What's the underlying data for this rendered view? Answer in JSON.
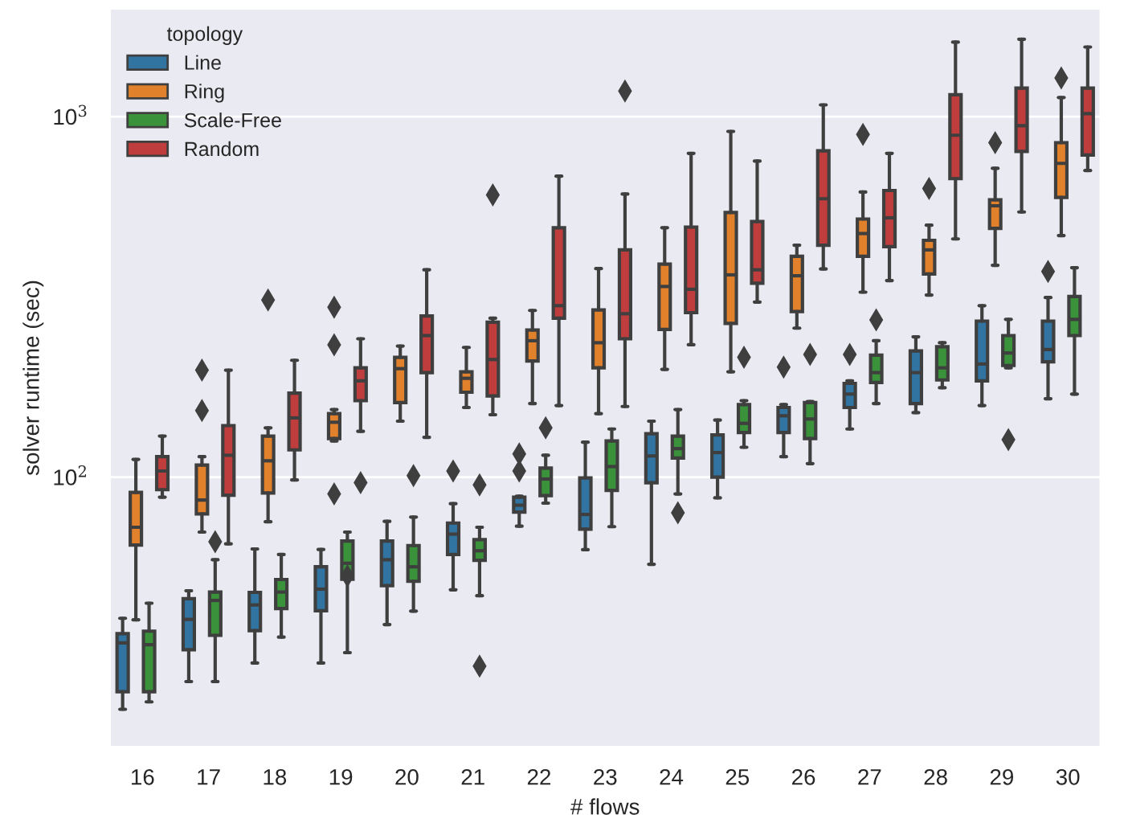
{
  "chart_data": {
    "type": "box",
    "xlabel": "# flows",
    "ylabel": "solver runtime (sec)",
    "legend_title": "topology",
    "legend": "top left",
    "grid": "y",
    "log": "y",
    "marker": "diamond",
    "ylim": [
      17.8,
      2000
    ],
    "yticks": [
      {
        "value": 100,
        "label": "10$^{2}$"
      },
      {
        "value": 1000,
        "label": "10$^{3}$"
      }
    ],
    "categories": [
      "16",
      "17",
      "18",
      "19",
      "20",
      "21",
      "22",
      "23",
      "24",
      "25",
      "26",
      "27",
      "28",
      "29",
      "30"
    ],
    "series": [
      {
        "name": "Line",
        "color": "#3274a1",
        "boxes": [
          {
            "low": 22.7,
            "q1": 25.4,
            "median": 34.7,
            "q3": 36.8,
            "high": 40.6
          },
          {
            "low": 27.1,
            "q1": 33.2,
            "median": 40.3,
            "q3": 46,
            "high": 48.4
          },
          {
            "low": 30.5,
            "q1": 37.5,
            "median": 44.2,
            "q3": 47.9,
            "high": 63.2
          },
          {
            "low": 30.5,
            "q1": 42.6,
            "median": 48.9,
            "q3": 56.4,
            "high": 63
          },
          {
            "low": 39,
            "q1": 50,
            "median": 59,
            "q3": 66.5,
            "high": 75.4
          },
          {
            "low": 48.7,
            "q1": 61,
            "median": 69.5,
            "q3": 74.6,
            "high": 84.4,
            "outliers": [
              104
            ]
          },
          {
            "low": 73.1,
            "q1": 80,
            "median": 83.6,
            "q3": 88,
            "high": 88.6,
            "outliers": [
              116,
              104
            ]
          },
          {
            "low": 62.9,
            "q1": 71.7,
            "median": 78.8,
            "q3": 99.5,
            "high": 125
          },
          {
            "low": 57.3,
            "q1": 96.5,
            "median": 114.5,
            "q3": 132,
            "high": 143
          },
          {
            "low": 87.6,
            "q1": 100,
            "median": 117,
            "q3": 131,
            "high": 144
          },
          {
            "low": 114,
            "q1": 133,
            "median": 148,
            "q3": 156,
            "high": 159,
            "outliers": [
              202
            ]
          },
          {
            "low": 136,
            "q1": 156,
            "median": 170,
            "q3": 182,
            "high": 185,
            "outliers": [
              219
            ]
          },
          {
            "low": 151,
            "q1": 160,
            "median": 195,
            "q3": 224,
            "high": 245
          },
          {
            "low": 158,
            "q1": 185,
            "median": 206,
            "q3": 271,
            "high": 299
          },
          {
            "low": 165,
            "q1": 209,
            "median": 226,
            "q3": 271,
            "high": 315,
            "outliers": [
              372
            ]
          }
        ]
      },
      {
        "name": "Ring",
        "color": "#e1812c",
        "boxes": [
          {
            "low": 40.2,
            "q1": 64.8,
            "median": 72.6,
            "q3": 90.7,
            "high": 112
          },
          {
            "low": 70.4,
            "q1": 79.1,
            "median": 86.4,
            "q3": 108,
            "high": 114,
            "outliers": [
              198,
              153
            ]
          },
          {
            "low": 75.2,
            "q1": 90.4,
            "median": 111,
            "q3": 130,
            "high": 137,
            "outliers": [
              310
            ]
          },
          {
            "low": 126,
            "q1": 128,
            "median": 142,
            "q3": 150,
            "high": 154,
            "outliers": [
              296,
              233,
              89.8
            ]
          },
          {
            "low": 143,
            "q1": 161,
            "median": 200,
            "q3": 215,
            "high": 231
          },
          {
            "low": 156,
            "q1": 172,
            "median": 188,
            "q3": 196,
            "high": 229
          },
          {
            "low": 160,
            "q1": 210,
            "median": 239,
            "q3": 256,
            "high": 290
          },
          {
            "low": 150,
            "q1": 201,
            "median": 236,
            "q3": 291,
            "high": 379
          },
          {
            "low": 199,
            "q1": 257,
            "median": 338,
            "q3": 390,
            "high": 492
          },
          {
            "low": 196,
            "q1": 267,
            "median": 364,
            "q3": 542,
            "high": 910
          },
          {
            "low": 259,
            "q1": 288,
            "median": 362,
            "q3": 410,
            "high": 440
          },
          {
            "low": 326,
            "q1": 410,
            "median": 474,
            "q3": 520,
            "high": 618,
            "outliers": [
              893
            ]
          },
          {
            "low": 320,
            "q1": 366,
            "median": 427,
            "q3": 454,
            "high": 500,
            "outliers": [
              632
            ]
          },
          {
            "low": 387,
            "q1": 490,
            "median": 566,
            "q3": 588,
            "high": 719,
            "outliers": [
              847
            ]
          },
          {
            "low": 468,
            "q1": 597,
            "median": 742,
            "q3": 847,
            "high": 1130,
            "outliers": [
              1280
            ]
          }
        ]
      },
      {
        "name": "Scale-Free",
        "color": "#3a923a",
        "boxes": [
          {
            "low": 23.8,
            "q1": 25.4,
            "median": 34.3,
            "q3": 37.4,
            "high": 44.7
          },
          {
            "low": 27.1,
            "q1": 36.4,
            "median": 45.5,
            "q3": 48,
            "high": 59,
            "outliers": [
              66.2
            ]
          },
          {
            "low": 36,
            "q1": 43.2,
            "median": 48,
            "q3": 52,
            "high": 61
          },
          {
            "low": 32.6,
            "q1": 52.1,
            "median": 57.7,
            "q3": 66.5,
            "high": 70.4,
            "outliers": [
              53.2
            ]
          },
          {
            "low": 42.5,
            "q1": 51.4,
            "median": 56.4,
            "q3": 64.6,
            "high": 77.5,
            "outliers": [
              101
            ]
          },
          {
            "low": 46.9,
            "q1": 58.8,
            "median": 62.5,
            "q3": 67.1,
            "high": 72.6,
            "outliers": [
              95.2,
              29.9
            ]
          },
          {
            "low": 84.7,
            "q1": 88.9,
            "median": 98.8,
            "q3": 106,
            "high": 115,
            "outliers": [
              137
            ]
          },
          {
            "low": 72.9,
            "q1": 91.9,
            "median": 107,
            "q3": 126,
            "high": 136
          },
          {
            "low": 89.8,
            "q1": 113,
            "median": 120,
            "q3": 130,
            "high": 154,
            "outliers": [
              79.6
            ]
          },
          {
            "low": 121,
            "q1": 133,
            "median": 141,
            "q3": 159,
            "high": 163,
            "outliers": [
              215
            ]
          },
          {
            "low": 109,
            "q1": 128,
            "median": 145,
            "q3": 161,
            "high": 162,
            "outliers": [
              219
            ]
          },
          {
            "low": 160,
            "q1": 183,
            "median": 195,
            "q3": 218,
            "high": 239,
            "outliers": [
              273
            ]
          },
          {
            "low": 177,
            "q1": 186,
            "median": 201,
            "q3": 230,
            "high": 236
          },
          {
            "low": 201,
            "q1": 204,
            "median": 221,
            "q3": 247,
            "high": 274,
            "outliers": [
              127
            ]
          },
          {
            "low": 170,
            "q1": 247,
            "median": 274,
            "q3": 317,
            "high": 381
          }
        ]
      },
      {
        "name": "Random",
        "color": "#c03d3e",
        "boxes": [
          {
            "low": 88,
            "q1": 92.3,
            "median": 104,
            "q3": 114,
            "high": 130
          },
          {
            "low": 65.3,
            "q1": 89.1,
            "median": 115,
            "q3": 139,
            "high": 198
          },
          {
            "low": 98.2,
            "q1": 119,
            "median": 146,
            "q3": 171,
            "high": 211
          },
          {
            "low": 134,
            "q1": 163,
            "median": 185,
            "q3": 201,
            "high": 242,
            "outliers": [
              96.5
            ]
          },
          {
            "low": 129,
            "q1": 195,
            "median": 247,
            "q3": 280,
            "high": 376
          },
          {
            "low": 149,
            "q1": 168,
            "median": 212,
            "q3": 269,
            "high": 276,
            "outliers": [
              607
            ]
          },
          {
            "low": 158,
            "q1": 276,
            "median": 299,
            "q3": 492,
            "high": 684
          },
          {
            "low": 157,
            "q1": 242,
            "median": 284,
            "q3": 427,
            "high": 610,
            "outliers": [
              1178
            ]
          },
          {
            "low": 233,
            "q1": 286,
            "median": 332,
            "q3": 494,
            "high": 791
          },
          {
            "low": 306,
            "q1": 345,
            "median": 376,
            "q3": 512,
            "high": 753
          },
          {
            "low": 378,
            "q1": 440,
            "median": 592,
            "q3": 804,
            "high": 1078
          },
          {
            "low": 351,
            "q1": 436,
            "median": 524,
            "q3": 624,
            "high": 791
          },
          {
            "low": 458,
            "q1": 673,
            "median": 888,
            "q3": 1150,
            "high": 1610
          },
          {
            "low": 544,
            "q1": 801,
            "median": 944,
            "q3": 1200,
            "high": 1640
          },
          {
            "low": 709,
            "q1": 783,
            "median": 1020,
            "q3": 1200,
            "high": 1560
          }
        ]
      }
    ]
  }
}
